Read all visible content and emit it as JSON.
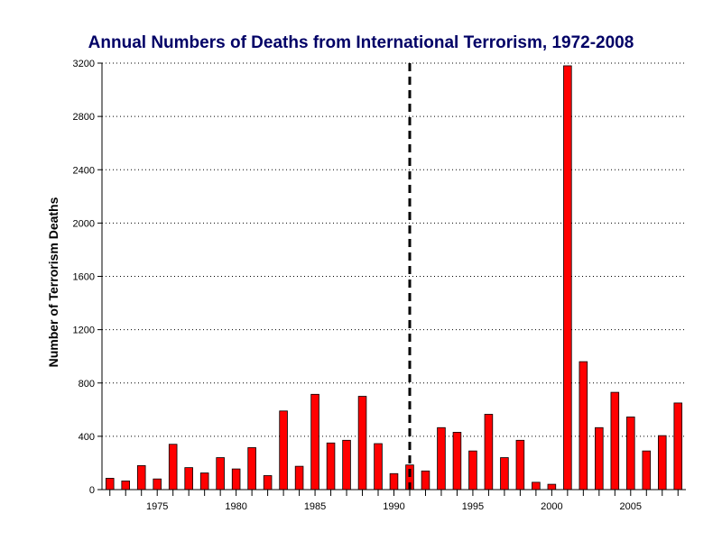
{
  "chart_data": {
    "type": "bar",
    "title": "Annual Numbers of Deaths from International Terrorism, 1972-2008",
    "xlabel": "",
    "ylabel": "Number of Terrorism Deaths",
    "x": [
      1972,
      1973,
      1974,
      1975,
      1976,
      1977,
      1978,
      1979,
      1980,
      1981,
      1982,
      1983,
      1984,
      1985,
      1986,
      1987,
      1988,
      1989,
      1990,
      1991,
      1992,
      1993,
      1994,
      1995,
      1996,
      1997,
      1998,
      1999,
      2000,
      2001,
      2002,
      2003,
      2004,
      2005,
      2006,
      2007,
      2008
    ],
    "values": [
      85,
      65,
      180,
      80,
      340,
      165,
      125,
      240,
      155,
      315,
      105,
      590,
      175,
      715,
      350,
      370,
      700,
      345,
      120,
      185,
      140,
      465,
      430,
      290,
      565,
      240,
      370,
      55,
      40,
      3180,
      960,
      465,
      730,
      545,
      290,
      405,
      650
    ],
    "xticks": [
      1975,
      1980,
      1985,
      1990,
      1995,
      2000,
      2005
    ],
    "yticks": [
      0,
      400,
      800,
      1200,
      1600,
      2000,
      2400,
      2800,
      3200
    ],
    "ylim": [
      0,
      3200
    ],
    "xlim": [
      1971.5,
      2008.5
    ],
    "bar_color": "#ff0000",
    "bar_edge_color": "#000000",
    "grid": "horizontal-dotted",
    "reference_line_x": 1991,
    "reference_line_style": "dashed"
  }
}
